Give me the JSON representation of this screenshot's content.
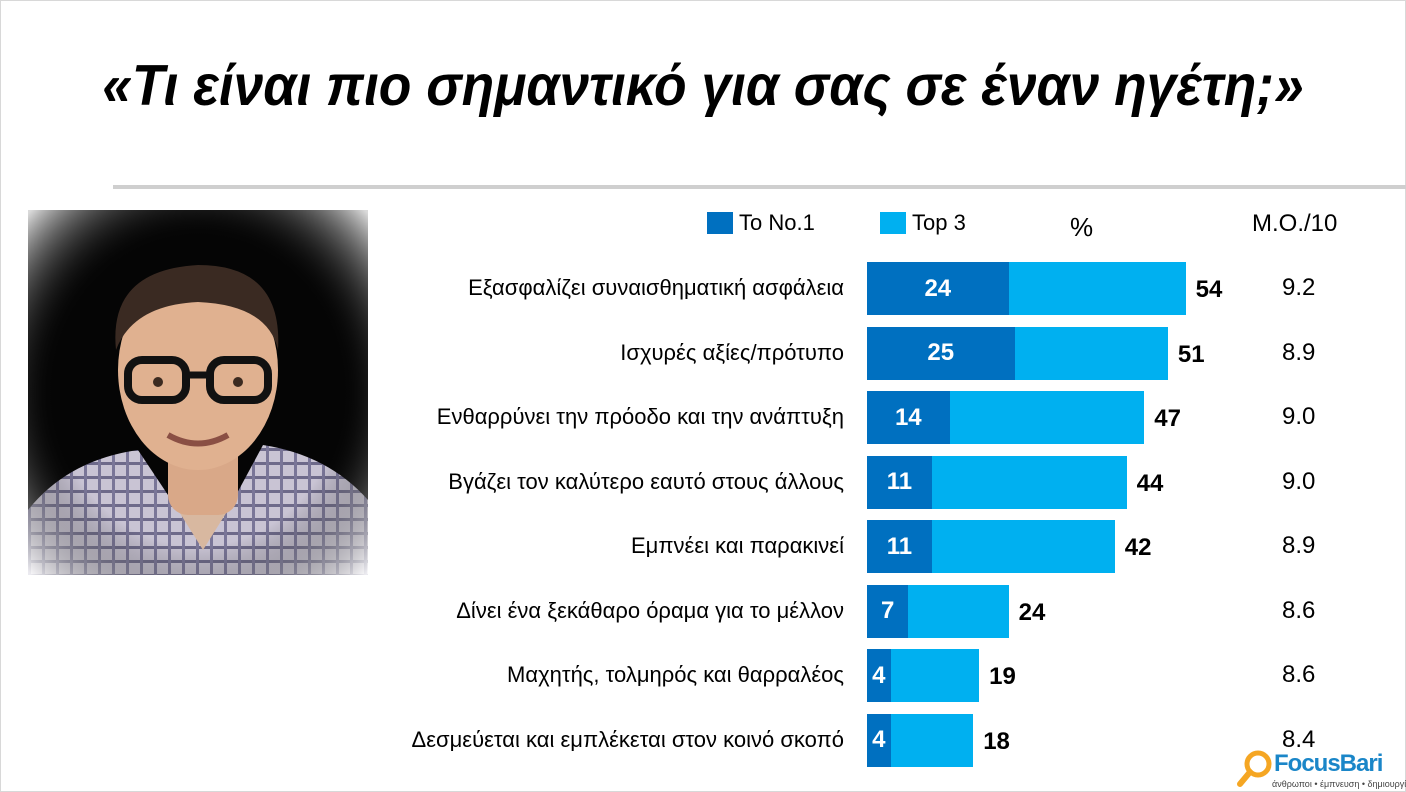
{
  "title": "«Τι είναι πιο σημαντικό για σας σε έναν ηγέτη;»",
  "legend": {
    "no1": "Το No.1",
    "top3": "Top 3"
  },
  "percent_label": "%",
  "mean_label": "M.O./10",
  "colors": {
    "no1": "#0070c0",
    "top3": "#00b0f0"
  },
  "logo": {
    "name": "FocusBari",
    "tagline": "άνθρωποι • έμπνευση • δημιουργία"
  },
  "chart_data": {
    "type": "bar",
    "orientation": "horizontal",
    "categories": [
      "Εξασφαλίζει συναισθηματική ασφάλεια",
      "Ισχυρές αξίες/πρότυπο",
      "Ενθαρρύνει την πρόοδο και την ανάπτυξη",
      "Βγάζει τον καλύτερο εαυτό στους άλλους",
      "Εμπνέει και παρακινεί",
      "Δίνει ένα ξεκάθαρο όραμα για το μέλλον",
      "Μαχητής, τολμηρός και θαρραλέος",
      "Δεσμεύεται και εμπλέκεται στον κοινό σκοπό"
    ],
    "series": [
      {
        "name": "Το No.1",
        "values": [
          24,
          25,
          14,
          11,
          11,
          7,
          4,
          4
        ]
      },
      {
        "name": "Top 3",
        "values": [
          54,
          51,
          47,
          44,
          42,
          24,
          19,
          18
        ]
      }
    ],
    "mean": [
      9.2,
      8.9,
      9.0,
      9.0,
      8.9,
      8.6,
      8.6,
      8.4
    ],
    "xlim": [
      0,
      60
    ]
  }
}
